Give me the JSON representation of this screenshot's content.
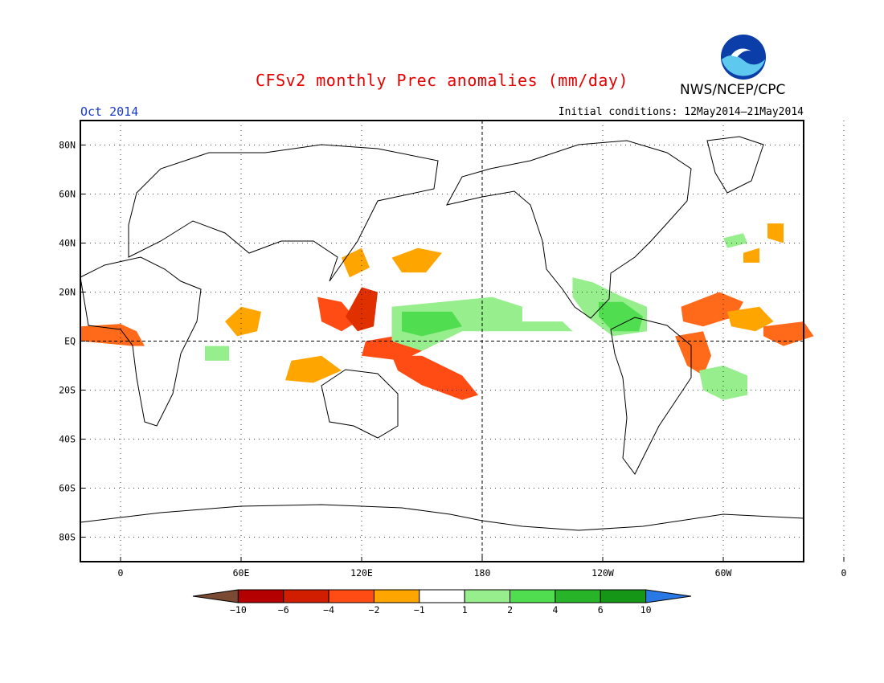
{
  "chart_data": {
    "type": "heatmap",
    "title": "CFSv2 monthly Prec anomalies (mm/day)",
    "subtitle_left": "Oct 2014",
    "subtitle_right": "Initial conditions: 12May2014–21May2014",
    "agency": "NWS/NCEP/CPC",
    "lon_range": [
      -20,
      340
    ],
    "lat_range": [
      -90,
      90
    ],
    "x_ticks": [
      {
        "lon": 0,
        "label": "0"
      },
      {
        "lon": 60,
        "label": "60E"
      },
      {
        "lon": 120,
        "label": "120E"
      },
      {
        "lon": 180,
        "label": "180"
      },
      {
        "lon": 240,
        "label": "120W"
      },
      {
        "lon": 300,
        "label": "60W"
      },
      {
        "lon": 360,
        "label": "0"
      }
    ],
    "y_ticks": [
      {
        "lat": 80,
        "label": "80N"
      },
      {
        "lat": 60,
        "label": "60N"
      },
      {
        "lat": 40,
        "label": "40N"
      },
      {
        "lat": 20,
        "label": "20N"
      },
      {
        "lat": 0,
        "label": "EQ"
      },
      {
        "lat": -20,
        "label": "20S"
      },
      {
        "lat": -40,
        "label": "40S"
      },
      {
        "lat": -60,
        "label": "60S"
      },
      {
        "lat": -80,
        "label": "80S"
      }
    ],
    "grid": true,
    "colorbar": {
      "colors": [
        "#7a4a32",
        "#b40000",
        "#d21e00",
        "#ff4c14",
        "#ffa500",
        "#ffffff",
        "#96ee8c",
        "#50de50",
        "#28b428",
        "#169616",
        "#2878e6"
      ],
      "labels": [
        "−10",
        "−6",
        "−4",
        "−2",
        "−1",
        "1",
        "2",
        "4",
        "6",
        "10"
      ]
    },
    "anomaly_regions": [
      {
        "level": "dry",
        "color": "#ff6a1a",
        "pts": [
          [
            -20,
            6
          ],
          [
            0,
            7
          ],
          [
            8,
            4
          ],
          [
            12,
            -2
          ],
          [
            6,
            -2
          ],
          [
            -20,
            0
          ]
        ]
      },
      {
        "level": "dry",
        "color": "#ffa500",
        "pts": [
          [
            52,
            8
          ],
          [
            60,
            14
          ],
          [
            70,
            12
          ],
          [
            68,
            4
          ],
          [
            58,
            2
          ]
        ]
      },
      {
        "level": "dry",
        "color": "#ffa500",
        "pts": [
          [
            85,
            -8
          ],
          [
            100,
            -6
          ],
          [
            110,
            -12
          ],
          [
            96,
            -17
          ],
          [
            82,
            -16
          ]
        ]
      },
      {
        "level": "dry",
        "color": "#ff4c14",
        "pts": [
          [
            98,
            18
          ],
          [
            110,
            16
          ],
          [
            118,
            8
          ],
          [
            110,
            4
          ],
          [
            100,
            8
          ]
        ]
      },
      {
        "level": "dry",
        "color": "#e03000",
        "pts": [
          [
            112,
            10
          ],
          [
            120,
            22
          ],
          [
            128,
            20
          ],
          [
            126,
            6
          ],
          [
            118,
            4
          ]
        ]
      },
      {
        "level": "dry",
        "color": "#ff4c14",
        "pts": [
          [
            122,
            0
          ],
          [
            150,
            4
          ],
          [
            155,
            -2
          ],
          [
            140,
            -8
          ],
          [
            120,
            -6
          ]
        ]
      },
      {
        "level": "dry",
        "color": "#ff4c14",
        "pts": [
          [
            135,
            -6
          ],
          [
            150,
            -6
          ],
          [
            170,
            -14
          ],
          [
            178,
            -22
          ],
          [
            170,
            -24
          ],
          [
            150,
            -18
          ],
          [
            138,
            -12
          ]
        ]
      },
      {
        "level": "dry",
        "color": "#ffa500",
        "pts": [
          [
            135,
            34
          ],
          [
            148,
            38
          ],
          [
            160,
            36
          ],
          [
            152,
            28
          ],
          [
            140,
            28
          ]
        ]
      },
      {
        "level": "dry",
        "color": "#ffa500",
        "pts": [
          [
            110,
            34
          ],
          [
            120,
            38
          ],
          [
            124,
            30
          ],
          [
            114,
            26
          ]
        ]
      },
      {
        "level": "dry",
        "color": "#ff6a1a",
        "pts": [
          [
            279,
            14
          ],
          [
            298,
            20
          ],
          [
            310,
            16
          ],
          [
            306,
            10
          ],
          [
            290,
            6
          ],
          [
            280,
            8
          ]
        ]
      },
      {
        "level": "dry",
        "color": "#ff6a1a",
        "pts": [
          [
            276,
            2
          ],
          [
            290,
            4
          ],
          [
            294,
            -6
          ],
          [
            290,
            -14
          ],
          [
            282,
            -10
          ]
        ]
      },
      {
        "level": "dry",
        "color": "#ffa500",
        "pts": [
          [
            302,
            12
          ],
          [
            318,
            14
          ],
          [
            325,
            8
          ],
          [
            316,
            4
          ],
          [
            304,
            6
          ]
        ]
      },
      {
        "level": "dry",
        "color": "#ff6a1a",
        "pts": [
          [
            320,
            6
          ],
          [
            340,
            8
          ],
          [
            345,
            2
          ],
          [
            330,
            -2
          ],
          [
            320,
            2
          ]
        ]
      },
      {
        "level": "dry",
        "color": "#ffa500",
        "pts": [
          [
            322,
            48
          ],
          [
            330,
            48
          ],
          [
            330,
            40
          ],
          [
            322,
            42
          ]
        ]
      },
      {
        "level": "dry",
        "color": "#ffa500",
        "pts": [
          [
            310,
            36
          ],
          [
            318,
            38
          ],
          [
            318,
            32
          ],
          [
            310,
            32
          ]
        ]
      },
      {
        "level": "wet",
        "color": "#96ee8c",
        "pts": [
          [
            135,
            14
          ],
          [
            160,
            16
          ],
          [
            185,
            18
          ],
          [
            200,
            14
          ],
          [
            200,
            8
          ],
          [
            170,
            4
          ],
          [
            150,
            -4
          ],
          [
            135,
            0
          ]
        ]
      },
      {
        "level": "wet",
        "color": "#50de50",
        "pts": [
          [
            140,
            12
          ],
          [
            165,
            12
          ],
          [
            170,
            6
          ],
          [
            150,
            2
          ],
          [
            140,
            4
          ]
        ]
      },
      {
        "level": "wet",
        "color": "#96ee8c",
        "pts": [
          [
            170,
            8
          ],
          [
            220,
            8
          ],
          [
            225,
            4
          ],
          [
            170,
            4
          ]
        ]
      },
      {
        "level": "wet",
        "color": "#96ee8c",
        "pts": [
          [
            225,
            26
          ],
          [
            235,
            24
          ],
          [
            250,
            18
          ],
          [
            262,
            14
          ],
          [
            262,
            4
          ],
          [
            245,
            2
          ],
          [
            232,
            10
          ],
          [
            225,
            18
          ]
        ]
      },
      {
        "level": "wet",
        "color": "#50de50",
        "pts": [
          [
            238,
            16
          ],
          [
            250,
            16
          ],
          [
            260,
            10
          ],
          [
            258,
            4
          ],
          [
            245,
            4
          ],
          [
            238,
            10
          ]
        ]
      },
      {
        "level": "wet",
        "color": "#96ee8c",
        "pts": [
          [
            288,
            -12
          ],
          [
            300,
            -10
          ],
          [
            312,
            -14
          ],
          [
            312,
            -22
          ],
          [
            300,
            -24
          ],
          [
            290,
            -20
          ]
        ]
      },
      {
        "level": "wet",
        "color": "#96ee8c",
        "pts": [
          [
            42,
            -2
          ],
          [
            54,
            -2
          ],
          [
            54,
            -8
          ],
          [
            42,
            -8
          ]
        ]
      },
      {
        "level": "wet",
        "color": "#96ee8c",
        "pts": [
          [
            300,
            42
          ],
          [
            310,
            44
          ],
          [
            312,
            40
          ],
          [
            302,
            38
          ]
        ]
      }
    ]
  }
}
